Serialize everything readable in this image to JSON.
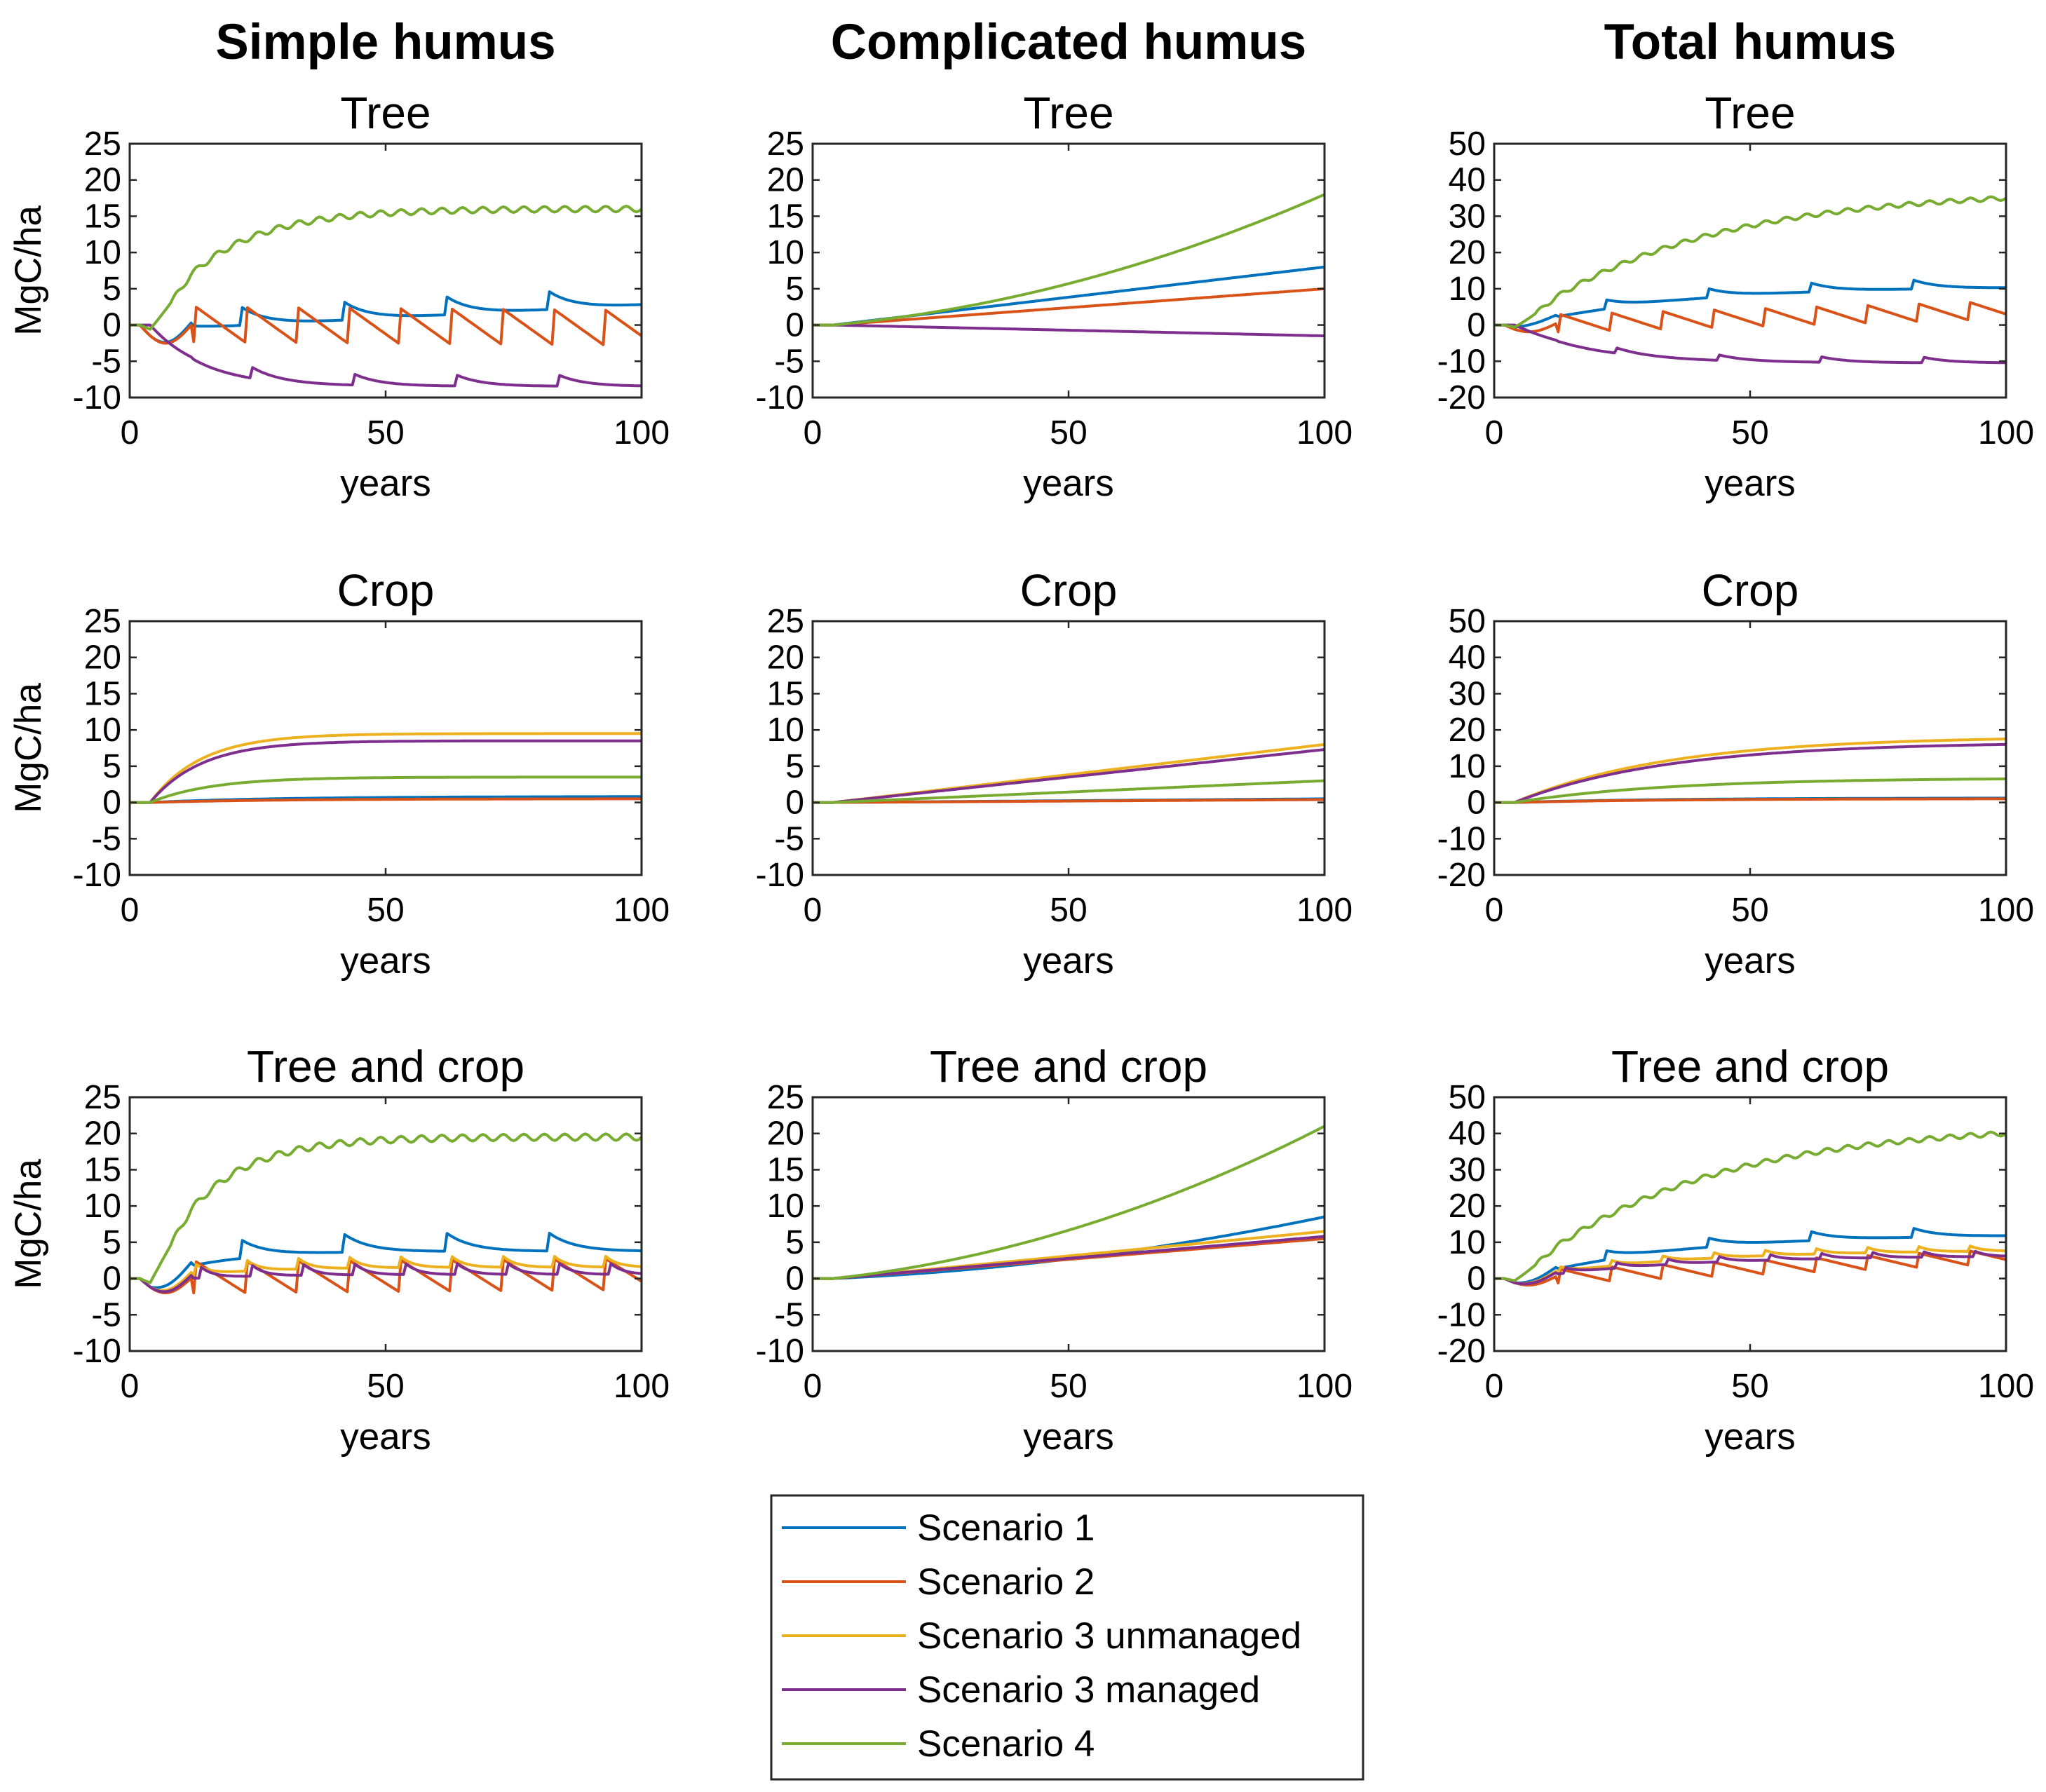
{
  "chart_data": {
    "type": "line",
    "column_titles": [
      "Simple humus",
      "Complicated humus",
      "Total humus"
    ],
    "row_titles": [
      "Tree",
      "Crop",
      "Tree and crop"
    ],
    "xlabel": "years",
    "ylabel": "MgC/ha",
    "xlim": [
      0,
      100
    ],
    "xticks": [
      0,
      50,
      100
    ],
    "legend": {
      "position": "bottom-center",
      "entries": [
        "Scenario 1",
        "Scenario 2",
        "Scenario 3 unmanaged",
        "Scenario 3 managed",
        "Scenario 4"
      ]
    },
    "colors": {
      "Scenario 1": "#0072BD",
      "Scenario 2": "#D95319",
      "Scenario 3 unmanaged": "#EDB120",
      "Scenario 3 managed": "#7E2F8E",
      "Scenario 4": "#77AC30"
    },
    "panels": [
      {
        "title": "Tree",
        "column": 0,
        "row": 0,
        "ylim": [
          -10,
          25
        ],
        "yticks": [
          -10,
          -5,
          0,
          5,
          10,
          15,
          20,
          25
        ],
        "series": [
          {
            "name": "Scenario 1",
            "shape": "spiky",
            "start": 0,
            "end": 3.5,
            "dip": -2.5,
            "tau": 12,
            "amp": 2.5,
            "period": 20,
            "phase": 2,
            "interp": "lin"
          },
          {
            "name": "Scenario 2",
            "shape": "saw",
            "start": 0,
            "end": -0.5,
            "dip": -2.5,
            "amp": 5,
            "period": 10,
            "phase": 3,
            "interp": "lin"
          },
          {
            "name": "Scenario 3 managed",
            "shape": "spiky",
            "start": 0,
            "end": -8,
            "dip": 0,
            "tau": 10,
            "amp": 1.5,
            "period": 20,
            "phase": 4,
            "interp": "exp"
          },
          {
            "name": "Scenario 4",
            "shape": "wavy",
            "start": 0,
            "end": 16,
            "dip": -1,
            "tau": 14,
            "amp": 0.8,
            "period": 4,
            "phase": 0,
            "interp": "exp"
          }
        ]
      },
      {
        "title": "Tree",
        "column": 1,
        "row": 0,
        "ylim": [
          -10,
          25
        ],
        "yticks": [
          -10,
          -5,
          0,
          5,
          10,
          15,
          20,
          25
        ],
        "series": [
          {
            "name": "Scenario 1",
            "shape": "smooth",
            "start": 0,
            "end": 8,
            "interp": "lin"
          },
          {
            "name": "Scenario 2",
            "shape": "smooth",
            "start": 0,
            "end": 5,
            "interp": "lin"
          },
          {
            "name": "Scenario 3 managed",
            "shape": "smooth",
            "start": 0,
            "end": -1.5,
            "interp": "lin"
          },
          {
            "name": "Scenario 4",
            "shape": "smooth",
            "start": 0,
            "end": 18,
            "interp": "quad"
          }
        ]
      },
      {
        "title": "Tree",
        "column": 2,
        "row": 0,
        "ylim": [
          -20,
          50
        ],
        "yticks": [
          -20,
          -10,
          0,
          10,
          20,
          30,
          40,
          50
        ],
        "series": [
          {
            "name": "Scenario 1",
            "shape": "spiky",
            "start": 0,
            "end": 11,
            "dip": -1,
            "tau": 30,
            "amp": 2.5,
            "period": 20,
            "phase": 2,
            "interp": "exp"
          },
          {
            "name": "Scenario 2",
            "shape": "saw",
            "start": 0,
            "end": 4,
            "dip": -2,
            "amp": 5,
            "period": 10,
            "phase": 3,
            "interp": "lin"
          },
          {
            "name": "Scenario 3 managed",
            "shape": "spiky",
            "start": 0,
            "end": -10,
            "dip": 0,
            "tau": 15,
            "amp": 1.5,
            "period": 20,
            "phase": 4,
            "interp": "exp"
          },
          {
            "name": "Scenario 4",
            "shape": "wavy",
            "start": 0,
            "end": 35,
            "dip": -1,
            "tau": 35,
            "amp": 1.2,
            "period": 4,
            "phase": 0,
            "interp": "exp"
          }
        ]
      },
      {
        "title": "Crop",
        "column": 0,
        "row": 1,
        "ylim": [
          -10,
          25
        ],
        "yticks": [
          -10,
          -5,
          0,
          5,
          10,
          15,
          20,
          25
        ],
        "series": [
          {
            "name": "Scenario 1",
            "shape": "smooth",
            "start": 0,
            "end": 0.8,
            "tau": 25,
            "interp": "exp"
          },
          {
            "name": "Scenario 2",
            "shape": "smooth",
            "start": 0,
            "end": 0.5,
            "tau": 25,
            "interp": "exp"
          },
          {
            "name": "Scenario 3 unmanaged",
            "shape": "smooth",
            "start": 0,
            "end": 9.5,
            "tau": 10,
            "interp": "exp"
          },
          {
            "name": "Scenario 3 managed",
            "shape": "smooth",
            "start": 0,
            "end": 8.5,
            "tau": 10,
            "interp": "exp"
          },
          {
            "name": "Scenario 4",
            "shape": "smooth",
            "start": 0,
            "end": 3.5,
            "tau": 12,
            "interp": "exp"
          }
        ]
      },
      {
        "title": "Crop",
        "column": 1,
        "row": 1,
        "ylim": [
          -10,
          25
        ],
        "yticks": [
          -10,
          -5,
          0,
          5,
          10,
          15,
          20,
          25
        ],
        "series": [
          {
            "name": "Scenario 1",
            "shape": "smooth",
            "start": 0,
            "end": 0.5,
            "interp": "lin"
          },
          {
            "name": "Scenario 2",
            "shape": "smooth",
            "start": 0,
            "end": 0.4,
            "interp": "lin"
          },
          {
            "name": "Scenario 3 unmanaged",
            "shape": "smooth",
            "start": 0,
            "end": 8,
            "interp": "lin"
          },
          {
            "name": "Scenario 3 managed",
            "shape": "smooth",
            "start": 0,
            "end": 7.3,
            "interp": "lin"
          },
          {
            "name": "Scenario 4",
            "shape": "smooth",
            "start": 0,
            "end": 3,
            "interp": "lin"
          }
        ]
      },
      {
        "title": "Crop",
        "column": 2,
        "row": 1,
        "ylim": [
          -20,
          50
        ],
        "yticks": [
          -20,
          -10,
          0,
          10,
          20,
          30,
          40,
          50
        ],
        "series": [
          {
            "name": "Scenario 1",
            "shape": "smooth",
            "start": 0,
            "end": 1.2,
            "tau": 30,
            "interp": "exp"
          },
          {
            "name": "Scenario 2",
            "shape": "smooth",
            "start": 0,
            "end": 1,
            "tau": 30,
            "interp": "exp"
          },
          {
            "name": "Scenario 3 unmanaged",
            "shape": "smooth",
            "start": 0,
            "end": 17.5,
            "tau": 30,
            "interp": "exp"
          },
          {
            "name": "Scenario 3 managed",
            "shape": "smooth",
            "start": 0,
            "end": 16,
            "tau": 30,
            "interp": "exp"
          },
          {
            "name": "Scenario 4",
            "shape": "smooth",
            "start": 0,
            "end": 6.5,
            "tau": 30,
            "interp": "exp"
          }
        ]
      },
      {
        "title": "Tree and crop",
        "column": 0,
        "row": 2,
        "ylim": [
          -10,
          25
        ],
        "yticks": [
          -10,
          -5,
          0,
          5,
          10,
          15,
          20,
          25
        ],
        "series": [
          {
            "name": "Scenario 1",
            "shape": "spiky",
            "start": 0,
            "end": 4.5,
            "dip": -2,
            "tau": 12,
            "amp": 2.5,
            "period": 20,
            "phase": 2,
            "interp": "exp"
          },
          {
            "name": "Scenario 2",
            "shape": "saw",
            "start": 0,
            "end": 0.5,
            "dip": -2,
            "amp": 4.5,
            "period": 10,
            "phase": 3,
            "interp": "lin"
          },
          {
            "name": "Scenario 3 unmanaged",
            "shape": "spiky",
            "start": 0,
            "end": 2,
            "dip": -2,
            "tau": 15,
            "amp": 1.5,
            "period": 10,
            "phase": 3,
            "interp": "exp"
          },
          {
            "name": "Scenario 3 managed",
            "shape": "spiky",
            "start": 0,
            "end": 1,
            "dip": -2,
            "tau": 15,
            "amp": 1.5,
            "period": 10,
            "phase": 4,
            "interp": "exp"
          },
          {
            "name": "Scenario 4",
            "shape": "wavy",
            "start": 0,
            "end": 19.5,
            "dip": -1,
            "tau": 12,
            "amp": 0.9,
            "period": 4,
            "phase": 0,
            "interp": "exp"
          }
        ]
      },
      {
        "title": "Tree and crop",
        "column": 1,
        "row": 2,
        "ylim": [
          -10,
          25
        ],
        "yticks": [
          -10,
          -5,
          0,
          5,
          10,
          15,
          20,
          25
        ],
        "series": [
          {
            "name": "Scenario 1",
            "shape": "smooth",
            "start": 0,
            "end": 8.5,
            "interp": "quad"
          },
          {
            "name": "Scenario 2",
            "shape": "smooth",
            "start": 0,
            "end": 5.5,
            "interp": "lin"
          },
          {
            "name": "Scenario 3 unmanaged",
            "shape": "smooth",
            "start": 0,
            "end": 6.5,
            "interp": "lin"
          },
          {
            "name": "Scenario 3 managed",
            "shape": "smooth",
            "start": 0,
            "end": 5.8,
            "interp": "lin"
          },
          {
            "name": "Scenario 4",
            "shape": "smooth",
            "start": 0,
            "end": 21,
            "interp": "quad"
          }
        ]
      },
      {
        "title": "Tree and crop",
        "column": 2,
        "row": 2,
        "ylim": [
          -20,
          50
        ],
        "yticks": [
          -20,
          -10,
          0,
          10,
          20,
          30,
          40,
          50
        ],
        "series": [
          {
            "name": "Scenario 1",
            "shape": "spiky",
            "start": 0,
            "end": 12.5,
            "dip": -2,
            "tau": 30,
            "amp": 2.5,
            "period": 20,
            "phase": 2,
            "interp": "exp"
          },
          {
            "name": "Scenario 2",
            "shape": "saw",
            "start": 0,
            "end": 6,
            "dip": -2,
            "amp": 4,
            "period": 10,
            "phase": 3,
            "interp": "lin"
          },
          {
            "name": "Scenario 3 unmanaged",
            "shape": "spiky",
            "start": 0,
            "end": 8,
            "dip": -2,
            "tau": 30,
            "amp": 1.5,
            "period": 10,
            "phase": 3,
            "interp": "exp"
          },
          {
            "name": "Scenario 3 managed",
            "shape": "spiky",
            "start": 0,
            "end": 6.5,
            "dip": -2,
            "tau": 30,
            "amp": 1.5,
            "period": 10,
            "phase": 4,
            "interp": "exp"
          },
          {
            "name": "Scenario 4",
            "shape": "wavy",
            "start": 0,
            "end": 40,
            "dip": -1,
            "tau": 35,
            "amp": 1.3,
            "period": 4,
            "phase": 0,
            "interp": "exp"
          }
        ]
      }
    ]
  }
}
